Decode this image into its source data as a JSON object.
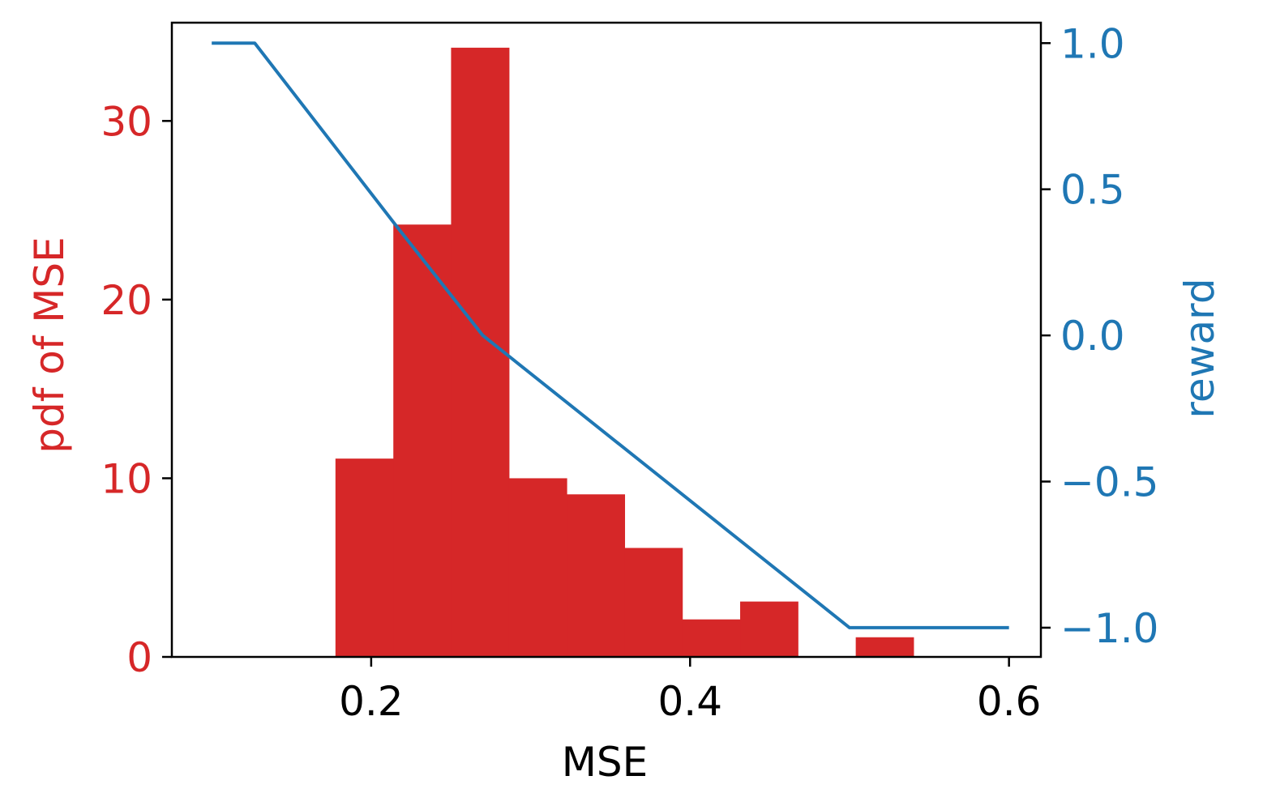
{
  "chart_data": {
    "type": "bar",
    "xlabel": "MSE",
    "ylabel": "pdf of MSE",
    "y2label": "reward",
    "xlim": [
      0.075,
      0.62
    ],
    "ylim": [
      0,
      35.5
    ],
    "y2lim": [
      -1.1,
      1.07
    ],
    "xticks": [
      0.2,
      0.4,
      0.6
    ],
    "xtick_labels": [
      "0.2",
      "0.4",
      "0.6"
    ],
    "yticks": [
      0,
      10,
      20,
      30
    ],
    "ytick_labels": [
      "0",
      "10",
      "20",
      "30"
    ],
    "y2ticks": [
      -1.0,
      -0.5,
      0.0,
      0.5,
      1.0
    ],
    "y2tick_labels": [
      "−1.0",
      "−0.5",
      "0.0",
      "0.5",
      "1.0"
    ],
    "grid": false,
    "histogram": {
      "bin_edges": [
        0.1776,
        0.2139,
        0.2501,
        0.2864,
        0.3226,
        0.3589,
        0.3951,
        0.4314,
        0.4676,
        0.5039,
        0.5401
      ],
      "values": [
        11.1,
        24.2,
        34.1,
        10.0,
        9.1,
        6.1,
        2.1,
        3.1,
        0,
        1.1
      ]
    },
    "reward_line": {
      "x": [
        0.1,
        0.127,
        0.215,
        0.27,
        0.5,
        0.6
      ],
      "y": [
        1.0,
        1.0,
        0.38,
        0.0,
        -1.0,
        -1.0
      ]
    },
    "colors": {
      "histogram": "#d62728",
      "reward": "#1f77b4",
      "axes": "#000000"
    }
  }
}
